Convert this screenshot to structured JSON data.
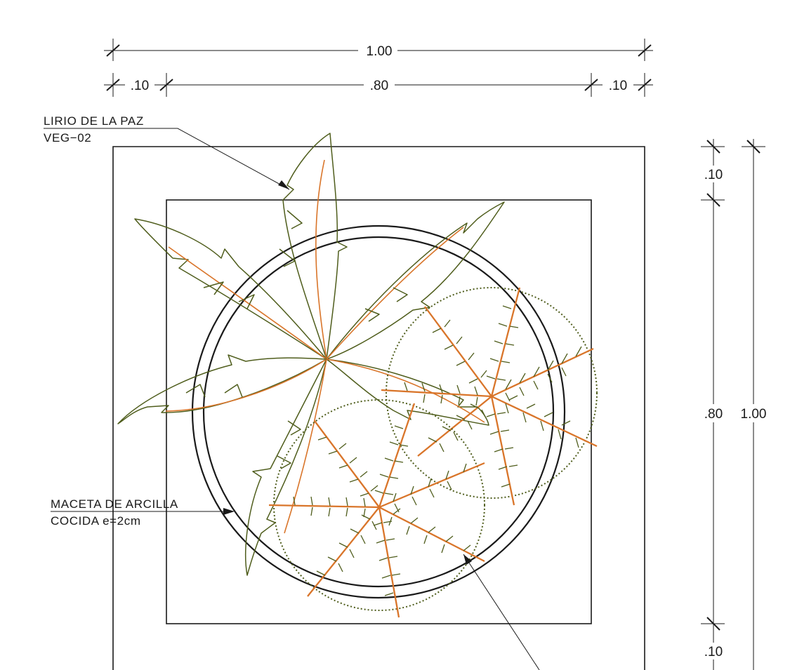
{
  "dimensions": {
    "top_overall": "1.00",
    "top_left_border": ".10",
    "top_inner": ".80",
    "top_right_border": ".10",
    "right_top_border": ".10",
    "right_inner": ".80",
    "right_overall": "1.00",
    "right_bottom_border": ".10"
  },
  "labels": {
    "plant_name": "LIRIO DE LA PAZ",
    "plant_code": "VEG−02",
    "pot_line1": "MACETA DE ARCILLA",
    "pot_line2": "COCIDA e=2cm"
  },
  "colors": {
    "linework": "#1a1a1a",
    "foliage": "#4f5d1c",
    "veins": "#d9752a"
  }
}
